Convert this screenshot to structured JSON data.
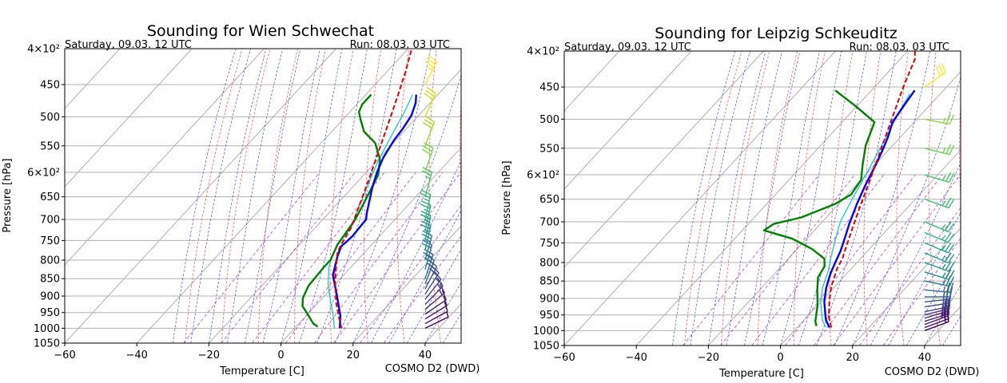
{
  "chart_data": [
    {
      "type": "line",
      "title": "Sounding for Wien Schwechat",
      "valid_label": "Saturday, 09.03. 12 UTC",
      "run_label": "Run: 08.03. 03 UTC",
      "xlabel": "Temperature [C]",
      "ylabel": "Pressure [hPa]",
      "source": "COSMO D2 (DWD)",
      "xlim": [
        -60,
        50
      ],
      "ylim": [
        1050,
        400
      ],
      "yscale": "log",
      "grid": true,
      "x_ticks": [
        "−60",
        "−40",
        "−20",
        "0",
        "20",
        "40"
      ],
      "y_ticks": [
        "450",
        "500",
        "550",
        "650",
        "700",
        "750",
        "800",
        "850",
        "900",
        "950",
        "1000",
        "1050"
      ],
      "y_minor_labels": [
        "4×10²",
        "6×10²"
      ],
      "colors": {
        "temperature": "#0000ff",
        "dewpoint": "#008000",
        "parcel": "#e00000",
        "wetbulb": "#00c8c8",
        "cape": "#f08080"
      },
      "series": [
        {
          "key": "temperature",
          "values": [
            [
              12.5,
              1000
            ],
            [
              9.5,
              960
            ],
            [
              3.0,
              895
            ],
            [
              -3.0,
              840
            ],
            [
              -6.5,
              790
            ],
            [
              -8.0,
              765
            ],
            [
              -7.5,
              740
            ],
            [
              -8.0,
              700
            ],
            [
              -9.5,
              685
            ],
            [
              -14.5,
              630
            ],
            [
              -17.0,
              600
            ],
            [
              -19.0,
              572
            ],
            [
              -20.5,
              540
            ],
            [
              -21.0,
              520
            ],
            [
              -22.0,
              498
            ],
            [
              -24.0,
              478
            ],
            [
              -26.0,
              465
            ]
          ]
        },
        {
          "key": "dewpoint",
          "values": [
            [
              6.0,
              995
            ],
            [
              4.0,
              985
            ],
            [
              0.0,
              955
            ],
            [
              -3.5,
              930
            ],
            [
              -5.5,
              905
            ],
            [
              -7.0,
              870
            ],
            [
              -7.5,
              820
            ],
            [
              -7.5,
              800
            ],
            [
              -8.0,
              790
            ],
            [
              -9.5,
              760
            ],
            [
              -11.0,
              700
            ],
            [
              -13.5,
              650
            ],
            [
              -16.0,
              605
            ],
            [
              -19.5,
              575
            ],
            [
              -25.0,
              545
            ],
            [
              -31.0,
              525
            ],
            [
              -35.0,
              505
            ],
            [
              -37.5,
              492
            ],
            [
              -38.5,
              480
            ],
            [
              -38.5,
              465
            ]
          ]
        },
        {
          "key": "parcel",
          "values": [
            [
              13.0,
              1000
            ],
            [
              10.0,
              970
            ],
            [
              5.0,
              920
            ],
            [
              -1.0,
              855
            ],
            [
              -4.0,
              820
            ],
            [
              -7.5,
              780
            ],
            [
              -8.5,
              760
            ],
            [
              -10.0,
              720
            ],
            [
              -13.0,
              675
            ],
            [
              -17.0,
              620
            ],
            [
              -21.5,
              565
            ],
            [
              -26.0,
              515
            ],
            [
              -30.5,
              470
            ],
            [
              -35.0,
              430
            ],
            [
              -39.0,
              400
            ]
          ]
        },
        {
          "key": "wetbulb",
          "values": [
            [
              11.0,
              1000
            ],
            [
              8.0,
              965
            ],
            [
              2.0,
              905
            ],
            [
              -2.0,
              865
            ],
            [
              -6.0,
              820
            ],
            [
              -8.0,
              790
            ],
            [
              -9.5,
              760
            ],
            [
              -10.0,
              720
            ],
            [
              -12.0,
              690
            ],
            [
              -16.0,
              630
            ],
            [
              -19.5,
              580
            ],
            [
              -22.5,
              530
            ],
            [
              -25.0,
              490
            ],
            [
              -27.0,
              465
            ]
          ]
        }
      ],
      "cape_polygon": [
        [
          -8.0,
          765
        ],
        [
          -8.5,
          760
        ],
        [
          -7.5,
          780
        ],
        [
          -4.0,
          820
        ],
        [
          -1.0,
          855
        ],
        [
          -3.0,
          840
        ],
        [
          -6.5,
          790
        ]
      ],
      "wind_barbs": [
        {
          "p": 1000,
          "speed": 5,
          "dir": 0.45,
          "color": "#440154"
        },
        {
          "p": 985,
          "speed": 10,
          "dir": 0.5,
          "color": "#46085c"
        },
        {
          "p": 970,
          "speed": 10,
          "dir": 0.55,
          "color": "#471365"
        },
        {
          "p": 955,
          "speed": 10,
          "dir": 0.6,
          "color": "#482071"
        },
        {
          "p": 940,
          "speed": 15,
          "dir": 0.7,
          "color": "#472a7a"
        },
        {
          "p": 925,
          "speed": 15,
          "dir": 0.8,
          "color": "#453781"
        },
        {
          "p": 910,
          "speed": 15,
          "dir": 0.9,
          "color": "#414487"
        },
        {
          "p": 895,
          "speed": 20,
          "dir": 1.0,
          "color": "#3e4c8a"
        },
        {
          "p": 880,
          "speed": 20,
          "dir": 1.1,
          "color": "#39568c"
        },
        {
          "p": 865,
          "speed": 20,
          "dir": 1.2,
          "color": "#33638d"
        },
        {
          "p": 850,
          "speed": 20,
          "dir": 1.25,
          "color": "#2f6c8e"
        },
        {
          "p": 825,
          "speed": 20,
          "dir": 1.3,
          "color": "#2a788e"
        },
        {
          "p": 800,
          "speed": 25,
          "dir": 1.3,
          "color": "#25848e"
        },
        {
          "p": 775,
          "speed": 25,
          "dir": 1.35,
          "color": "#21918c"
        },
        {
          "p": 750,
          "speed": 25,
          "dir": 1.35,
          "color": "#1f9e89"
        },
        {
          "p": 725,
          "speed": 25,
          "dir": 1.35,
          "color": "#25ab82"
        },
        {
          "p": 700,
          "speed": 25,
          "dir": 1.35,
          "color": "#35b779"
        },
        {
          "p": 650,
          "speed": 25,
          "dir": 1.3,
          "color": "#4ec36b"
        },
        {
          "p": 600,
          "speed": 30,
          "dir": 1.25,
          "color": "#7ad151"
        },
        {
          "p": 550,
          "speed": 30,
          "dir": 1.2,
          "color": "#a5db36"
        },
        {
          "p": 500,
          "speed": 30,
          "dir": 1.15,
          "color": "#d2e21b"
        },
        {
          "p": 450,
          "speed": 35,
          "dir": 1.1,
          "color": "#fde725"
        }
      ]
    },
    {
      "type": "line",
      "title": "Sounding for Leipzig Schkeuditz",
      "valid_label": "Saturday, 09.03. 12 UTC",
      "run_label": "Run: 08.03. 03 UTC",
      "xlabel": "Temperature [C]",
      "ylabel": "Pressure [hPa]",
      "source": "COSMO D2 (DWD)",
      "xlim": [
        -60,
        50
      ],
      "ylim": [
        1050,
        400
      ],
      "yscale": "log",
      "grid": true,
      "x_ticks": [
        "−60",
        "−40",
        "−20",
        "0",
        "20",
        "40"
      ],
      "y_ticks": [
        "450",
        "500",
        "550",
        "650",
        "700",
        "750",
        "800",
        "850",
        "900",
        "950",
        "1000",
        "1050"
      ],
      "y_minor_labels": [
        "4×10²",
        "6×10²"
      ],
      "colors": {
        "temperature": "#0000ff",
        "dewpoint": "#008000",
        "parcel": "#e00000",
        "wetbulb": "#00c8c8"
      },
      "series": [
        {
          "key": "temperature",
          "values": [
            [
              9.0,
              990
            ],
            [
              6.0,
              965
            ],
            [
              1.0,
              910
            ],
            [
              -2.0,
              870
            ],
            [
              -4.5,
              830
            ],
            [
              -6.0,
              800
            ],
            [
              -7.5,
              770
            ],
            [
              -9.5,
              740
            ],
            [
              -12.0,
              705
            ],
            [
              -15.0,
              660
            ],
            [
              -17.5,
              620
            ],
            [
              -19.5,
              585
            ],
            [
              -21.5,
              555
            ],
            [
              -23.5,
              530
            ],
            [
              -26.0,
              505
            ],
            [
              -27.0,
              480
            ],
            [
              -28.0,
              455
            ]
          ]
        },
        {
          "key": "dewpoint",
          "values": [
            [
              5.0,
              985
            ],
            [
              3.5,
              970
            ],
            [
              0.0,
              920
            ],
            [
              -4.0,
              875
            ],
            [
              -7.0,
              840
            ],
            [
              -8.0,
              810
            ],
            [
              -10.0,
              790
            ],
            [
              -16.0,
              765
            ],
            [
              -24.0,
              740
            ],
            [
              -34.0,
              720
            ],
            [
              -33.0,
              705
            ],
            [
              -27.0,
              690
            ],
            [
              -21.0,
              660
            ],
            [
              -19.0,
              640
            ],
            [
              -20.0,
              610
            ],
            [
              -23.5,
              580
            ],
            [
              -27.5,
              545
            ],
            [
              -31.0,
              505
            ],
            [
              -40.0,
              480
            ],
            [
              -48.0,
              460
            ],
            [
              -50.0,
              455
            ]
          ]
        },
        {
          "key": "parcel",
          "values": [
            [
              9.5,
              990
            ],
            [
              6.0,
              955
            ],
            [
              2.0,
              905
            ],
            [
              -1.0,
              865
            ],
            [
              -4.0,
              815
            ],
            [
              -5.0,
              790
            ],
            [
              -7.0,
              760
            ],
            [
              -10.0,
              715
            ],
            [
              -13.5,
              665
            ],
            [
              -17.5,
              610
            ],
            [
              -22.0,
              555
            ],
            [
              -27.0,
              500
            ],
            [
              -32.0,
              450
            ],
            [
              -36.0,
              410
            ],
            [
              -38.0,
              400
            ]
          ]
        },
        {
          "key": "wetbulb",
          "values": [
            [
              8.0,
              990
            ],
            [
              5.0,
              965
            ],
            [
              0.0,
              910
            ],
            [
              -3.0,
              870
            ],
            [
              -6.0,
              820
            ],
            [
              -9.0,
              780
            ],
            [
              -12.0,
              740
            ],
            [
              -15.0,
              700
            ],
            [
              -17.5,
              650
            ],
            [
              -20.5,
              590
            ],
            [
              -24.0,
              530
            ],
            [
              -27.0,
              485
            ],
            [
              -28.5,
              460
            ]
          ]
        }
      ],
      "wind_barbs": [
        {
          "p": 1000,
          "speed": 20,
          "dir": 0.35,
          "color": "#440154"
        },
        {
          "p": 990,
          "speed": 20,
          "dir": 0.35,
          "color": "#46085c"
        },
        {
          "p": 980,
          "speed": 25,
          "dir": 0.35,
          "color": "#471365"
        },
        {
          "p": 970,
          "speed": 25,
          "dir": 0.3,
          "color": "#482071"
        },
        {
          "p": 960,
          "speed": 25,
          "dir": 0.3,
          "color": "#472a7a"
        },
        {
          "p": 950,
          "speed": 25,
          "dir": 0.25,
          "color": "#453781"
        },
        {
          "p": 940,
          "speed": 25,
          "dir": 0.2,
          "color": "#414487"
        },
        {
          "p": 925,
          "speed": 25,
          "dir": 0.15,
          "color": "#3e4c8a"
        },
        {
          "p": 910,
          "speed": 25,
          "dir": 0.1,
          "color": "#39568c"
        },
        {
          "p": 895,
          "speed": 25,
          "dir": 0.0,
          "color": "#33638d"
        },
        {
          "p": 875,
          "speed": 25,
          "dir": -0.1,
          "color": "#2f6c8e"
        },
        {
          "p": 850,
          "speed": 25,
          "dir": -0.2,
          "color": "#2a788e"
        },
        {
          "p": 825,
          "speed": 25,
          "dir": -0.3,
          "color": "#25848e"
        },
        {
          "p": 800,
          "speed": 25,
          "dir": -0.35,
          "color": "#21918c"
        },
        {
          "p": 775,
          "speed": 25,
          "dir": -0.4,
          "color": "#1f9e89"
        },
        {
          "p": 750,
          "speed": 25,
          "dir": -0.4,
          "color": "#25ab82"
        },
        {
          "p": 725,
          "speed": 25,
          "dir": -0.4,
          "color": "#2eb37c"
        },
        {
          "p": 700,
          "speed": 25,
          "dir": -0.4,
          "color": "#35b779"
        },
        {
          "p": 650,
          "speed": 25,
          "dir": -0.35,
          "color": "#3dbc74"
        },
        {
          "p": 600,
          "speed": 25,
          "dir": -0.3,
          "color": "#4ec36b"
        },
        {
          "p": 550,
          "speed": 25,
          "dir": -0.25,
          "color": "#6ccd5a"
        },
        {
          "p": 500,
          "speed": 25,
          "dir": -0.2,
          "color": "#8fd744"
        },
        {
          "p": 450,
          "speed": 30,
          "dir": 0.6,
          "color": "#fde725"
        }
      ]
    }
  ]
}
